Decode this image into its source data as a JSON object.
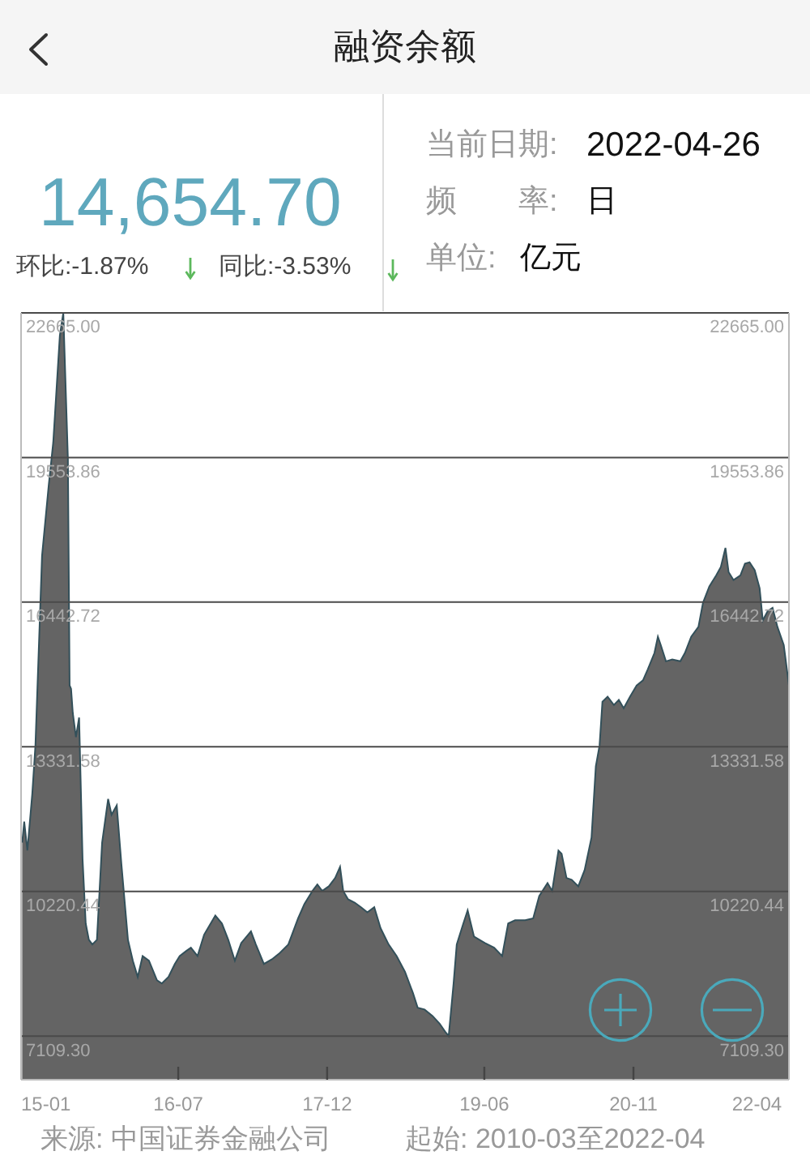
{
  "chart_data": {
    "type": "area",
    "title": "融资余额",
    "annotations": [
      "14,654.70",
      "环比:-1.87%",
      "同比:-3.53%",
      "当前日期:",
      "2022-04-26",
      "频　　率:",
      "日",
      "单位:",
      "亿元",
      "来源: 中国证券金融公司",
      "起始: 2010-03至2022-04"
    ],
    "x": [
      "2015-01-05",
      "2015-01-12",
      "2015-01-23",
      "2015-02-09",
      "2015-02-20",
      "2015-03-15",
      "2015-04-07",
      "2015-04-23",
      "2015-05-16",
      "2015-05-28",
      "2015-06-13",
      "2015-06-19",
      "2015-06-24",
      "2015-06-30",
      "2015-07-11",
      "2015-07-22",
      "2015-08-03",
      "2015-08-14",
      "2015-08-25",
      "2015-09-06",
      "2015-09-22",
      "2015-10-10",
      "2015-10-31",
      "2015-11-12",
      "2015-11-30",
      "2015-12-16",
      "2016-01-08",
      "2016-01-25",
      "2016-02-11",
      "2016-02-28",
      "2016-03-21",
      "2016-04-18",
      "2016-05-05",
      "2016-05-28",
      "2016-06-19",
      "2016-07-06",
      "2016-07-29",
      "2016-08-14",
      "2016-09-06",
      "2016-09-29",
      "2016-11-07",
      "2016-11-30",
      "2016-12-22",
      "2017-01-14",
      "2017-02-05",
      "2017-03-11",
      "2017-03-28",
      "2017-04-25",
      "2017-05-23",
      "2017-06-20",
      "2017-07-19",
      "2017-08-22",
      "2017-09-13",
      "2017-10-11",
      "2017-10-28",
      "2017-11-14",
      "2017-12-07",
      "2017-12-29",
      "2018-01-15",
      "2018-01-26",
      "2018-02-12",
      "2018-03-07",
      "2018-03-29",
      "2018-04-20",
      "2018-05-14",
      "2018-06-05",
      "2018-07-03",
      "2018-07-31",
      "2018-08-29",
      "2018-09-26",
      "2018-10-12",
      "2018-11-05",
      "2018-12-03",
      "2018-12-28",
      "2019-01-16",
      "2019-01-28",
      "2019-02-14",
      "2019-02-25",
      "2019-03-20",
      "2019-04-04",
      "2019-04-26",
      "2019-06-03",
      "2019-07-05",
      "2019-08-02",
      "2019-08-23",
      "2019-09-16",
      "2019-10-21",
      "2019-11-18",
      "2019-12-09",
      "2020-01-07",
      "2020-01-23",
      "2020-02-14",
      "2020-02-25",
      "2020-03-13",
      "2020-03-31",
      "2020-04-23",
      "2020-05-15",
      "2020-06-08",
      "2020-06-23",
      "2020-07-06",
      "2020-07-16",
      "2020-08-03",
      "2020-08-25",
      "2020-09-11",
      "2020-09-28",
      "2020-10-20",
      "2020-11-12",
      "2020-12-04",
      "2020-12-21",
      "2021-01-13",
      "2021-01-25",
      "2021-02-04",
      "2021-02-22",
      "2021-03-16",
      "2021-04-13",
      "2021-04-29",
      "2021-05-21",
      "2021-06-15",
      "2021-07-01",
      "2021-07-23",
      "2021-08-16",
      "2021-09-01",
      "2021-09-17",
      "2021-09-28",
      "2021-10-15",
      "2021-11-08",
      "2021-11-24",
      "2021-12-10",
      "2021-12-28",
      "2022-01-14",
      "2022-01-25",
      "2022-02-11",
      "2022-02-28",
      "2022-03-17",
      "2022-04-08",
      "2022-04-26"
    ],
    "values": [
      11270,
      11720,
      11100,
      12320,
      13360,
      17440,
      18940,
      19880,
      22180,
      22665,
      19530,
      14650,
      14580,
      14060,
      13540,
      13960,
      10920,
      9530,
      9180,
      9080,
      9180,
      11270,
      12210,
      11870,
      12070,
      10820,
      9180,
      8730,
      8380,
      8830,
      8730,
      8310,
      8240,
      8380,
      8660,
      8830,
      8940,
      9010,
      8830,
      9290,
      9700,
      9530,
      9180,
      8730,
      9110,
      9360,
      9080,
      8660,
      8760,
      8900,
      9080,
      9640,
      9950,
      10230,
      10370,
      10230,
      10330,
      10510,
      10750,
      10230,
      10050,
      9980,
      9880,
      9770,
      9880,
      9430,
      9080,
      8830,
      8490,
      8030,
      7720,
      7680,
      7540,
      7370,
      7200,
      7109.3,
      8240,
      9080,
      9530,
      9810,
      9250,
      9110,
      9010,
      8830,
      9530,
      9600,
      9600,
      9640,
      10120,
      10400,
      10230,
      11100,
      11030,
      10510,
      10470,
      10330,
      10680,
      11380,
      12910,
      13360,
      14300,
      14410,
      14230,
      14340,
      14160,
      14410,
      14650,
      14760,
      15000,
      15350,
      15700,
      15520,
      15170,
      15210,
      15170,
      15350,
      15700,
      15910,
      16430,
      16780,
      17020,
      17200,
      17610,
      17090,
      16920,
      17020,
      17270,
      17300,
      17130,
      16740,
      16050,
      16250,
      16320,
      15910,
      15520,
      14654.7
    ],
    "color": "#646464",
    "xlim": [
      "2015-01",
      "2022-04-26"
    ],
    "xticks": [
      {
        "value": "2015-01",
        "label": "15-01"
      },
      {
        "value": "2016-07",
        "label": "16-07"
      },
      {
        "value": "2017-12",
        "label": "17-12"
      },
      {
        "value": "2019-06",
        "label": "19-06"
      },
      {
        "value": "2020-11",
        "label": "20-11"
      },
      {
        "value": "2022-04",
        "label": "22-04"
      }
    ],
    "ylim": [
      6170,
      22665
    ],
    "yticks": [
      {
        "value": 7109.3,
        "label": "7109.30"
      },
      {
        "value": 10220.44,
        "label": "10220.44"
      },
      {
        "value": 13331.58,
        "label": "13331.58"
      },
      {
        "value": 16442.72,
        "label": "16442.72"
      },
      {
        "value": 19553.86,
        "label": "19553.86"
      },
      {
        "value": 22665,
        "label": "22665.00"
      }
    ],
    "y2lim": [
      6170,
      22665
    ],
    "y2ticks": [
      {
        "value": 7109.3,
        "label": "7109.30"
      },
      {
        "value": 10220.44,
        "label": "10220.44"
      },
      {
        "value": 13331.58,
        "label": "13331.58"
      },
      {
        "value": 16442.72,
        "label": "16442.72"
      },
      {
        "value": 19553.86,
        "label": "19553.86"
      },
      {
        "value": 22665,
        "label": "22665.00"
      }
    ],
    "grid": "y"
  }
}
